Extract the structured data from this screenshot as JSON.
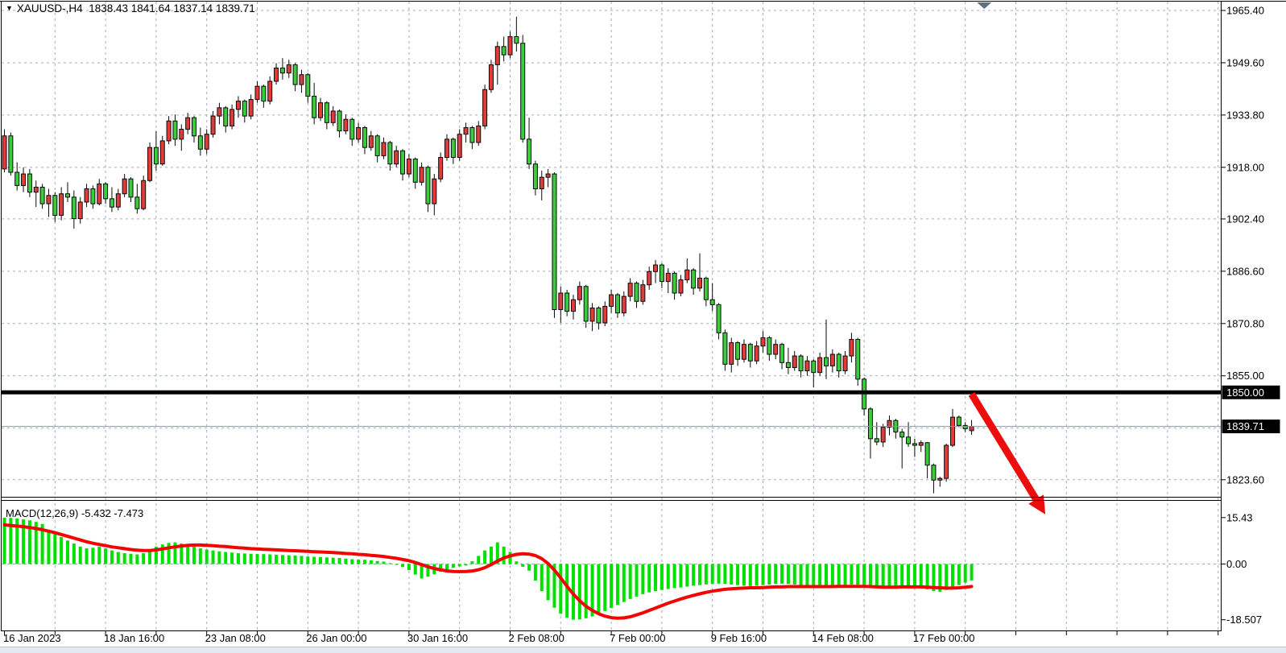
{
  "header": {
    "symbol_timeframe": "XAUUSD-,H4",
    "open": "1838.43",
    "high": "1841.64",
    "low": "1837.14",
    "close": "1839.71",
    "collapse_icon": "triangle-down"
  },
  "macd_panel": {
    "label": "MACD(12,26,9)",
    "values": "-5.432 -7.473"
  },
  "colors": {
    "background": "#ffffff",
    "grid": "#9fadbb",
    "bull_candle": "#e23b3b",
    "bear_candle": "#3bcc3b",
    "candle_outline": "#0a0a0a",
    "macd_histogram": "#00e100",
    "macd_signal": "#f20500",
    "resistance_line": "#000000",
    "current_price_line": "#8a99a8",
    "arrow": "#ec0d0d",
    "badge_bg": "#000000",
    "badge_text": "#ffffff",
    "axis_text": "#000000",
    "shift_marker": "#5c7080"
  },
  "chart_data": {
    "type": "candlestick-with-macd",
    "symbol": "XAUUSD-",
    "timeframe": "H4",
    "displayed_ohlc": {
      "open": 1838.43,
      "high": 1841.64,
      "low": 1837.14,
      "close": 1839.71
    },
    "price_axis": {
      "labels": [
        "1965.40",
        "1949.60",
        "1933.80",
        "1918.00",
        "1902.40",
        "1886.60",
        "1870.80",
        "1855.00",
        "1823.60"
      ],
      "label_values": [
        1965.4,
        1949.6,
        1933.8,
        1918.0,
        1902.4,
        1886.6,
        1870.8,
        1855.0,
        1823.6
      ],
      "gridline_values": [
        1965.4,
        1949.6,
        1933.8,
        1918.0,
        1902.4,
        1886.6,
        1870.8,
        1855.0,
        1839.2,
        1823.6
      ],
      "grid_step": 15.8
    },
    "time_axis": {
      "labels": [
        "16 Jan 2023",
        "18 Jan 16:00",
        "23 Jan 08:00",
        "26 Jan 00:00",
        "30 Jan 16:00",
        "2 Feb 08:00",
        "7 Feb 00:00",
        "9 Feb 16:00",
        "14 Feb 08:00",
        "17 Feb 00:00"
      ],
      "bars_per_label": 16,
      "bars_per_gridline": 8
    },
    "levels": {
      "resistance": {
        "price": 1850.0,
        "badge": "1850.00"
      },
      "current_price": {
        "price": 1839.71,
        "badge": "1839.71"
      }
    },
    "annotation_arrow": {
      "from_bar": 153,
      "from_price": 1849.5,
      "to_bar": 163.2,
      "to_price": 1817.7
    },
    "candles": [
      [
        1917.5,
        1929.5,
        1916.5,
        1927.5
      ],
      [
        1927.5,
        1928.5,
        1915.5,
        1916.5
      ],
      [
        1916.5,
        1919.5,
        1911.0,
        1912.5
      ],
      [
        1912.5,
        1918.0,
        1910.5,
        1916.0
      ],
      [
        1916.0,
        1917.5,
        1909.0,
        1910.5
      ],
      [
        1910.5,
        1914.0,
        1906.0,
        1912.0
      ],
      [
        1912.0,
        1913.0,
        1905.5,
        1907.0
      ],
      [
        1907.0,
        1911.5,
        1903.0,
        1909.5
      ],
      [
        1909.5,
        1910.5,
        1901.5,
        1903.5
      ],
      [
        1903.5,
        1912.0,
        1902.0,
        1910.0
      ],
      [
        1910.0,
        1913.5,
        1907.5,
        1909.0
      ],
      [
        1909.0,
        1911.0,
        1899.5,
        1902.5
      ],
      [
        1902.5,
        1909.0,
        1901.0,
        1907.5
      ],
      [
        1907.5,
        1913.0,
        1906.0,
        1911.5
      ],
      [
        1911.5,
        1912.5,
        1905.5,
        1907.0
      ],
      [
        1907.0,
        1914.5,
        1906.5,
        1913.0
      ],
      [
        1913.0,
        1913.5,
        1907.0,
        1908.5
      ],
      [
        1908.5,
        1912.0,
        1904.5,
        1906.0
      ],
      [
        1906.0,
        1911.5,
        1905.0,
        1910.0
      ],
      [
        1910.0,
        1916.0,
        1909.0,
        1914.5
      ],
      [
        1914.5,
        1915.0,
        1907.5,
        1909.0
      ],
      [
        1909.0,
        1913.0,
        1904.0,
        1905.5
      ],
      [
        1905.5,
        1915.5,
        1905.0,
        1914.0
      ],
      [
        1914.0,
        1925.5,
        1913.5,
        1924.0
      ],
      [
        1924.0,
        1929.0,
        1917.0,
        1919.0
      ],
      [
        1919.0,
        1927.5,
        1918.5,
        1926.0
      ],
      [
        1926.0,
        1933.5,
        1925.0,
        1932.0
      ],
      [
        1932.0,
        1934.0,
        1924.5,
        1926.5
      ],
      [
        1926.5,
        1931.0,
        1923.0,
        1929.5
      ],
      [
        1929.5,
        1934.5,
        1928.0,
        1933.0
      ],
      [
        1933.0,
        1933.5,
        1925.5,
        1927.5
      ],
      [
        1927.5,
        1930.0,
        1921.5,
        1923.5
      ],
      [
        1923.5,
        1929.5,
        1922.0,
        1928.0
      ],
      [
        1928.0,
        1935.0,
        1927.0,
        1933.5
      ],
      [
        1933.5,
        1937.5,
        1931.0,
        1936.0
      ],
      [
        1936.0,
        1936.5,
        1928.5,
        1930.5
      ],
      [
        1930.5,
        1937.0,
        1929.5,
        1935.5
      ],
      [
        1935.5,
        1939.5,
        1933.0,
        1938.0
      ],
      [
        1938.0,
        1938.5,
        1931.5,
        1933.5
      ],
      [
        1933.5,
        1940.0,
        1932.5,
        1938.5
      ],
      [
        1938.5,
        1944.0,
        1937.5,
        1942.5
      ],
      [
        1942.5,
        1943.0,
        1936.0,
        1938.0
      ],
      [
        1938.0,
        1945.5,
        1937.0,
        1944.0
      ],
      [
        1944.0,
        1949.5,
        1943.0,
        1948.0
      ],
      [
        1948.0,
        1951.0,
        1944.5,
        1946.5
      ],
      [
        1946.5,
        1950.5,
        1945.0,
        1949.0
      ],
      [
        1949.0,
        1949.5,
        1941.0,
        1943.0
      ],
      [
        1943.0,
        1947.5,
        1940.5,
        1946.0
      ],
      [
        1946.0,
        1946.5,
        1937.5,
        1939.5
      ],
      [
        1939.5,
        1943.5,
        1931.0,
        1933.0
      ],
      [
        1933.0,
        1939.0,
        1932.0,
        1937.5
      ],
      [
        1937.5,
        1938.0,
        1929.5,
        1931.5
      ],
      [
        1931.5,
        1936.5,
        1930.5,
        1935.0
      ],
      [
        1935.0,
        1935.5,
        1927.0,
        1929.0
      ],
      [
        1929.0,
        1934.0,
        1928.0,
        1932.5
      ],
      [
        1932.5,
        1933.0,
        1924.5,
        1926.5
      ],
      [
        1926.5,
        1931.5,
        1925.5,
        1930.0
      ],
      [
        1930.0,
        1930.5,
        1922.0,
        1924.0
      ],
      [
        1924.0,
        1929.0,
        1923.0,
        1927.5
      ],
      [
        1927.5,
        1928.0,
        1919.5,
        1921.5
      ],
      [
        1921.5,
        1927.0,
        1920.5,
        1925.5
      ],
      [
        1925.5,
        1926.0,
        1917.0,
        1919.0
      ],
      [
        1919.0,
        1924.5,
        1918.0,
        1923.0
      ],
      [
        1923.0,
        1923.5,
        1914.0,
        1916.0
      ],
      [
        1916.0,
        1922.0,
        1915.0,
        1920.5
      ],
      [
        1920.5,
        1921.0,
        1911.5,
        1913.5
      ],
      [
        1913.5,
        1919.5,
        1912.5,
        1918.0
      ],
      [
        1918.0,
        1918.5,
        1904.5,
        1907.0
      ],
      [
        1907.0,
        1916.0,
        1903.5,
        1914.5
      ],
      [
        1914.5,
        1922.5,
        1913.5,
        1921.0
      ],
      [
        1921.0,
        1928.0,
        1920.0,
        1926.5
      ],
      [
        1926.5,
        1927.0,
        1919.0,
        1921.0
      ],
      [
        1921.0,
        1929.5,
        1920.0,
        1928.0
      ],
      [
        1928.0,
        1931.5,
        1925.5,
        1930.0
      ],
      [
        1930.0,
        1930.5,
        1923.5,
        1925.5
      ],
      [
        1925.5,
        1932.0,
        1924.5,
        1930.5
      ],
      [
        1930.5,
        1943.0,
        1929.5,
        1941.5
      ],
      [
        1941.5,
        1950.5,
        1940.5,
        1949.0
      ],
      [
        1949.0,
        1956.0,
        1943.0,
        1954.5
      ],
      [
        1954.5,
        1957.5,
        1950.0,
        1952.0
      ],
      [
        1952.0,
        1959.0,
        1951.0,
        1957.5
      ],
      [
        1957.5,
        1963.5,
        1953.0,
        1955.5
      ],
      [
        1955.5,
        1958.0,
        1925.5,
        1926.5
      ],
      [
        1926.5,
        1933.0,
        1917.5,
        1919.0
      ],
      [
        1919.0,
        1920.0,
        1909.5,
        1911.5
      ],
      [
        1911.5,
        1917.0,
        1908.0,
        1915.0
      ],
      [
        1915.0,
        1917.5,
        1912.0,
        1916.0
      ],
      [
        1916.0,
        1916.5,
        1872.5,
        1875.0
      ],
      [
        1875.0,
        1882.0,
        1871.0,
        1880.0
      ],
      [
        1880.0,
        1881.0,
        1873.0,
        1874.5
      ],
      [
        1874.5,
        1879.5,
        1872.0,
        1878.0
      ],
      [
        1878.0,
        1883.5,
        1876.5,
        1882.0
      ],
      [
        1882.0,
        1882.5,
        1869.5,
        1871.5
      ],
      [
        1871.5,
        1877.0,
        1868.5,
        1875.5
      ],
      [
        1875.5,
        1876.0,
        1869.0,
        1871.0
      ],
      [
        1871.0,
        1877.5,
        1870.0,
        1876.0
      ],
      [
        1876.0,
        1881.0,
        1874.0,
        1879.5
      ],
      [
        1879.5,
        1880.0,
        1872.5,
        1874.0
      ],
      [
        1874.0,
        1880.5,
        1873.0,
        1879.0
      ],
      [
        1879.0,
        1884.5,
        1877.5,
        1883.0
      ],
      [
        1883.0,
        1883.5,
        1875.5,
        1877.5
      ],
      [
        1877.5,
        1884.0,
        1876.5,
        1882.5
      ],
      [
        1882.5,
        1888.0,
        1881.0,
        1886.5
      ],
      [
        1886.5,
        1890.0,
        1883.0,
        1888.5
      ],
      [
        1888.5,
        1889.0,
        1881.5,
        1883.5
      ],
      [
        1883.5,
        1887.5,
        1880.0,
        1886.0
      ],
      [
        1886.0,
        1886.5,
        1878.0,
        1880.0
      ],
      [
        1880.0,
        1885.5,
        1879.0,
        1884.0
      ],
      [
        1884.0,
        1890.5,
        1883.0,
        1887.0
      ],
      [
        1887.0,
        1887.5,
        1879.5,
        1881.5
      ],
      [
        1881.5,
        1892.0,
        1880.5,
        1884.5
      ],
      [
        1884.5,
        1885.0,
        1876.0,
        1878.0
      ],
      [
        1878.0,
        1883.0,
        1874.5,
        1876.5
      ],
      [
        1876.5,
        1877.0,
        1866.0,
        1868.0
      ],
      [
        1868.0,
        1869.0,
        1856.5,
        1858.5
      ],
      [
        1858.5,
        1866.5,
        1856.0,
        1865.0
      ],
      [
        1865.0,
        1865.5,
        1858.0,
        1860.0
      ],
      [
        1860.0,
        1866.0,
        1859.0,
        1864.5
      ],
      [
        1864.5,
        1865.0,
        1857.5,
        1859.5
      ],
      [
        1859.5,
        1865.5,
        1858.5,
        1864.0
      ],
      [
        1864.0,
        1868.5,
        1862.0,
        1866.5
      ],
      [
        1866.5,
        1867.0,
        1859.5,
        1861.5
      ],
      [
        1861.5,
        1866.0,
        1860.0,
        1864.5
      ],
      [
        1864.5,
        1865.0,
        1857.0,
        1859.0
      ],
      [
        1859.0,
        1863.5,
        1855.5,
        1857.5
      ],
      [
        1857.5,
        1862.5,
        1856.5,
        1861.0
      ],
      [
        1861.0,
        1861.5,
        1854.5,
        1856.5
      ],
      [
        1856.5,
        1861.0,
        1855.0,
        1859.5
      ],
      [
        1859.5,
        1860.0,
        1851.5,
        1856.0
      ],
      [
        1856.0,
        1862.0,
        1855.0,
        1860.5
      ],
      [
        1860.5,
        1872.0,
        1854.0,
        1858.0
      ],
      [
        1858.0,
        1863.0,
        1856.0,
        1861.5
      ],
      [
        1861.5,
        1862.0,
        1854.5,
        1856.5
      ],
      [
        1856.5,
        1862.5,
        1855.5,
        1861.0
      ],
      [
        1861.0,
        1868.0,
        1859.0,
        1866.0
      ],
      [
        1866.0,
        1866.5,
        1852.0,
        1854.0
      ],
      [
        1854.0,
        1854.5,
        1843.0,
        1845.0
      ],
      [
        1845.0,
        1845.5,
        1830.0,
        1836.0
      ],
      [
        1836.0,
        1841.0,
        1834.0,
        1835.0
      ],
      [
        1835.0,
        1840.5,
        1833.5,
        1839.5
      ],
      [
        1839.5,
        1843.0,
        1837.0,
        1841.5
      ],
      [
        1841.5,
        1842.0,
        1836.0,
        1838.0
      ],
      [
        1838.0,
        1839.0,
        1827.0,
        1836.5
      ],
      [
        1836.5,
        1841.0,
        1833.5,
        1834.5
      ],
      [
        1834.5,
        1836.0,
        1830.5,
        1834.0
      ],
      [
        1834.0,
        1835.5,
        1832.0,
        1834.8
      ],
      [
        1834.8,
        1835.0,
        1824.0,
        1828.0
      ],
      [
        1828.0,
        1828.5,
        1819.5,
        1823.5
      ],
      [
        1823.5,
        1824.5,
        1821.5,
        1824.0
      ],
      [
        1824.0,
        1834.5,
        1823.0,
        1834.0
      ],
      [
        1834.0,
        1845.0,
        1833.5,
        1842.5
      ],
      [
        1842.5,
        1843.0,
        1839.5,
        1840.0
      ],
      [
        1840.0,
        1841.0,
        1838.0,
        1839.0
      ],
      [
        1838.43,
        1841.64,
        1837.14,
        1839.71
      ]
    ],
    "macd": {
      "params": "12,26,9",
      "main_last": -5.432,
      "signal_last": -7.473,
      "scale_labels": [
        "15.43",
        "0.00",
        "-18.507"
      ],
      "scale_values": [
        15.43,
        0.0,
        -18.507
      ],
      "histogram": [
        15.4,
        15.3,
        15.1,
        14.8,
        14.5,
        14.0,
        13.3,
        11.4,
        10.0,
        9.0,
        7.8,
        6.8,
        5.8,
        5.2,
        5.4,
        5.8,
        5.2,
        4.5,
        4.0,
        3.6,
        3.4,
        3.2,
        3.6,
        4.8,
        5.8,
        6.5,
        7.0,
        7.2,
        6.8,
        6.4,
        5.8,
        5.2,
        4.8,
        4.5,
        4.2,
        4.0,
        3.8,
        3.6,
        3.5,
        3.4,
        3.3,
        3.3,
        3.2,
        3.1,
        3.0,
        2.9,
        2.8,
        2.7,
        2.5,
        2.4,
        2.3,
        2.2,
        2.1,
        2.0,
        1.8,
        1.6,
        1.5,
        1.4,
        1.2,
        1.0,
        0.8,
        0.3,
        -0.3,
        -1.0,
        -2.0,
        -3.5,
        -4.8,
        -4.2,
        -3.4,
        -2.6,
        -1.8,
        -1.2,
        -0.8,
        -0.5,
        0.9,
        2.7,
        4.5,
        5.8,
        7.2,
        5.8,
        4.0,
        0.9,
        -0.9,
        -2.2,
        -5.5,
        -9.0,
        -12.0,
        -14.5,
        -16.5,
        -17.8,
        -18.5,
        -18.4,
        -18.0,
        -17.4,
        -16.6,
        -15.6,
        -14.6,
        -13.6,
        -12.6,
        -11.6,
        -10.8,
        -10.0,
        -9.4,
        -9.0,
        -8.6,
        -8.3,
        -8.0,
        -7.8,
        -7.5,
        -7.2,
        -7.0,
        -6.8,
        -6.6,
        -6.5,
        -6.6,
        -6.8,
        -7.0,
        -7.2,
        -7.3,
        -7.2,
        -7.0,
        -6.8,
        -6.6,
        -6.5,
        -6.6,
        -6.8,
        -7.0,
        -7.2,
        -7.3,
        -7.4,
        -7.5,
        -7.4,
        -7.2,
        -7.0,
        -6.8,
        -6.9,
        -7.2,
        -7.6,
        -7.9,
        -7.8,
        -7.6,
        -7.4,
        -7.3,
        -7.2,
        -7.4,
        -7.8,
        -8.4,
        -9.0,
        -9.2,
        -8.6,
        -7.8,
        -7.0,
        -6.2,
        -5.432
      ],
      "signal": [
        13.0,
        12.8,
        12.6,
        12.4,
        12.1,
        11.8,
        11.4,
        10.9,
        10.4,
        9.8,
        9.2,
        8.6,
        8.0,
        7.4,
        6.9,
        6.5,
        6.1,
        5.7,
        5.4,
        5.1,
        4.8,
        4.6,
        4.5,
        4.5,
        4.7,
        5.0,
        5.4,
        5.7,
        6.0,
        6.2,
        6.3,
        6.3,
        6.2,
        6.1,
        5.9,
        5.8,
        5.6,
        5.4,
        5.3,
        5.1,
        5.0,
        4.9,
        4.8,
        4.7,
        4.6,
        4.5,
        4.4,
        4.3,
        4.2,
        4.1,
        4.0,
        3.9,
        3.8,
        3.7,
        3.5,
        3.4,
        3.2,
        3.1,
        2.9,
        2.7,
        2.5,
        2.2,
        1.9,
        1.5,
        1.1,
        0.5,
        -0.2,
        -0.9,
        -1.5,
        -1.9,
        -2.3,
        -2.45,
        -2.5,
        -2.45,
        -2.3,
        -1.9,
        -1.2,
        -0.2,
        1.0,
        2.0,
        2.7,
        3.2,
        3.4,
        3.3,
        2.8,
        1.8,
        0.2,
        -2.0,
        -4.6,
        -7.4,
        -10.0,
        -12.2,
        -14.0,
        -15.4,
        -16.5,
        -17.3,
        -17.8,
        -18.0,
        -17.9,
        -17.5,
        -16.9,
        -16.2,
        -15.4,
        -14.6,
        -13.8,
        -13.0,
        -12.3,
        -11.6,
        -11.0,
        -10.4,
        -9.9,
        -9.4,
        -9.0,
        -8.7,
        -8.4,
        -8.2,
        -8.1,
        -8.0,
        -7.9,
        -7.9,
        -7.8,
        -7.7,
        -7.6,
        -7.6,
        -7.5,
        -7.5,
        -7.5,
        -7.5,
        -7.5,
        -7.5,
        -7.5,
        -7.5,
        -7.4,
        -7.4,
        -7.4,
        -7.4,
        -7.4,
        -7.5,
        -7.6,
        -7.7,
        -7.7,
        -7.7,
        -7.6,
        -7.6,
        -7.6,
        -7.6,
        -7.7,
        -7.8,
        -7.9,
        -8.0,
        -8.0,
        -7.9,
        -7.7,
        -7.473
      ]
    }
  }
}
